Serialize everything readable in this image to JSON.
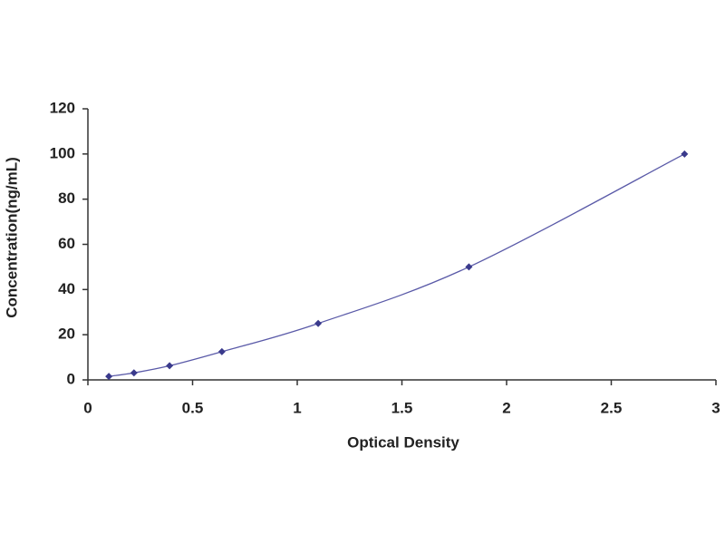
{
  "chart_data": {
    "type": "scatter",
    "x_label": "Optical Density",
    "y_label": "Concentration(ng/mL)",
    "series": [
      {
        "color": "#3a3a8c",
        "x": [
          0.1,
          0.22,
          0.39,
          0.64,
          1.1,
          1.82,
          2.85
        ],
        "values": [
          1.56,
          3.12,
          6.25,
          12.5,
          25,
          50,
          100
        ]
      }
    ],
    "xlim": [
      0,
      3
    ],
    "xticks": [
      0,
      0.5,
      1,
      1.5,
      2,
      2.5,
      3
    ],
    "ylim": [
      0,
      120
    ],
    "yticks": [
      0,
      20,
      40,
      60,
      80,
      100,
      120
    ],
    "fit_line": true
  }
}
